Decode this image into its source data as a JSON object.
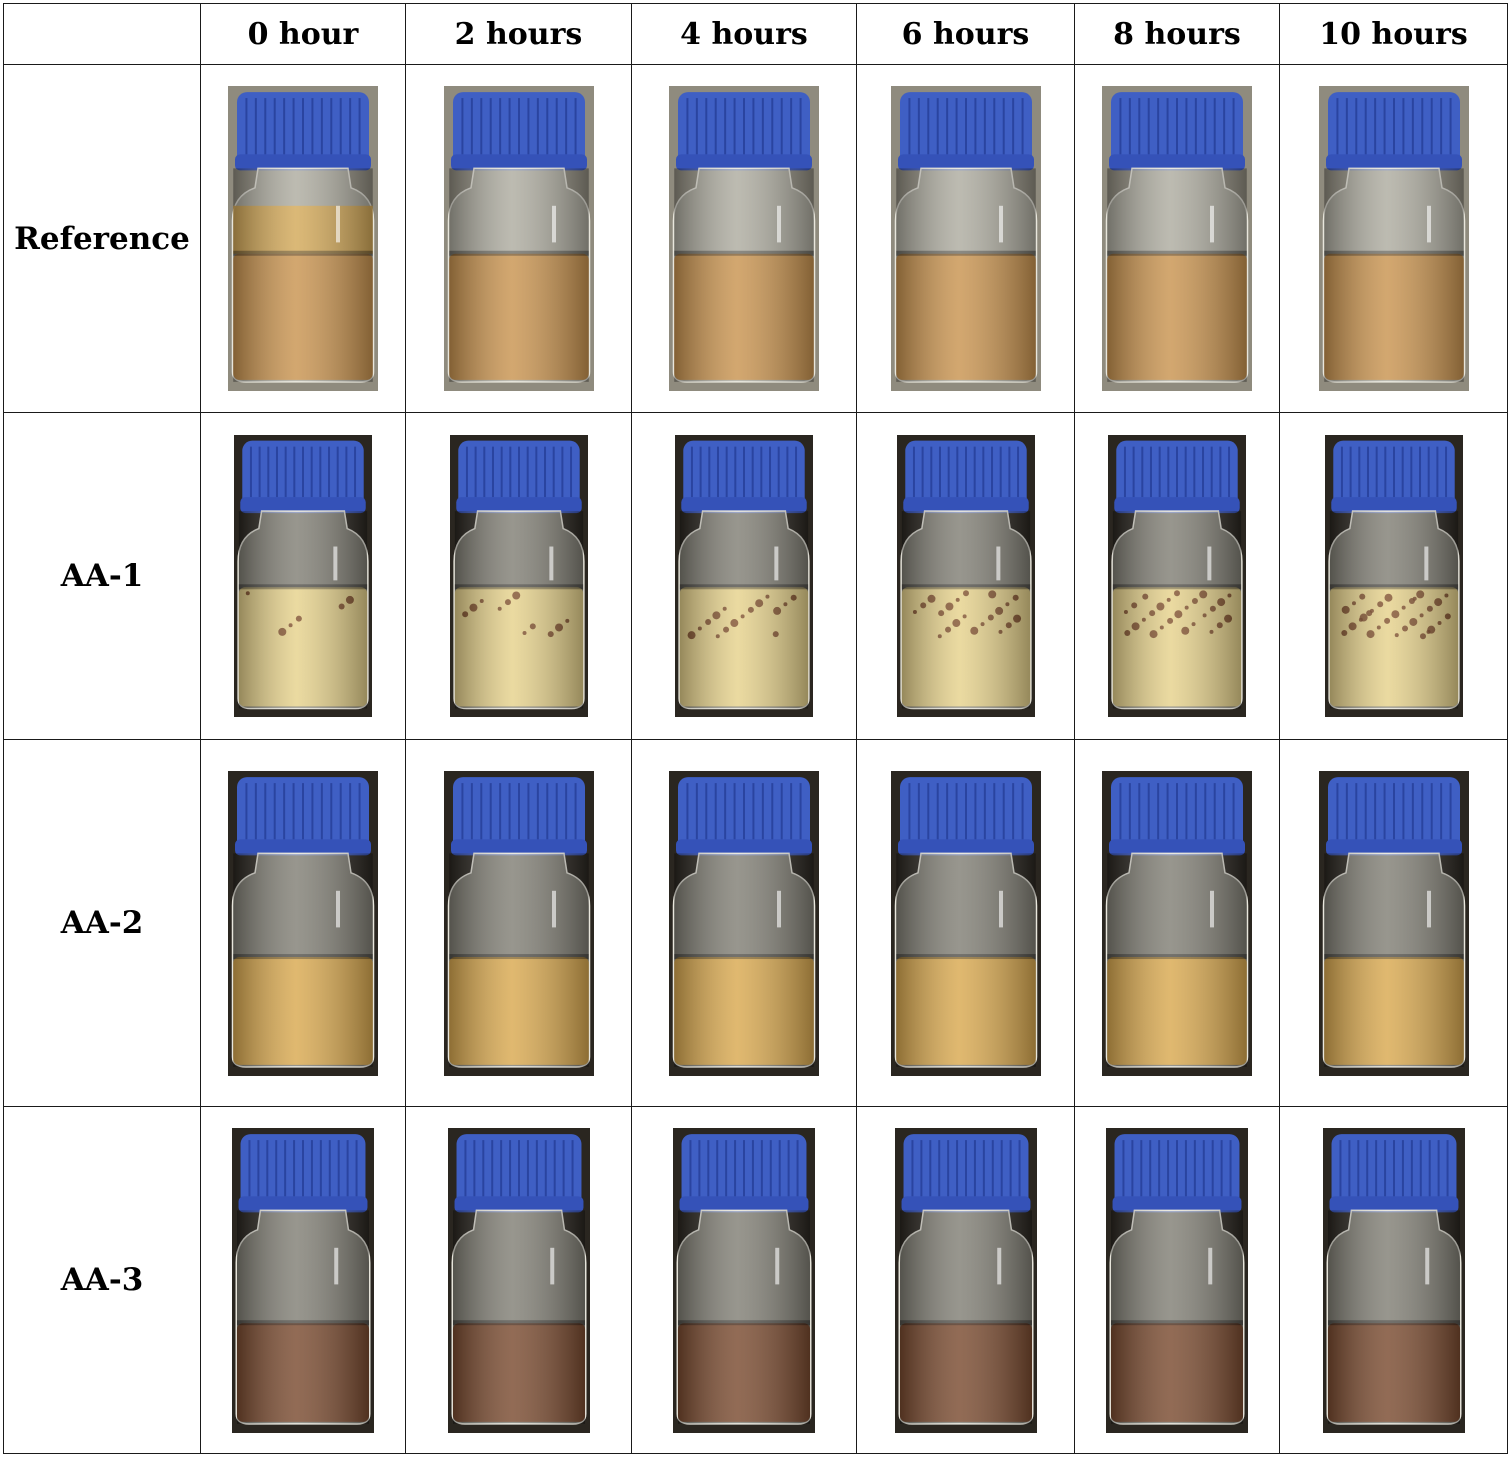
{
  "table": {
    "columns": [
      "0 hour",
      "2 hours",
      "4 hours",
      "6 hours",
      "8 hours",
      "10 hours"
    ],
    "rows": [
      {
        "label": "Reference"
      },
      {
        "label": "AA-1"
      },
      {
        "label": "AA-2"
      },
      {
        "label": "AA-3"
      }
    ]
  },
  "colors": {
    "cap_blue": "#3f5fc4",
    "reference_liquid": "#c99450",
    "aa1_liquid": "#e6d28c",
    "aa2_liquid": "#d9a950",
    "aa3_liquid": "#7a4b30",
    "photo_backdrop_light": "#8f8b7e",
    "photo_backdrop_dark": "#2a2620"
  },
  "icons": [
    "bottle-photo"
  ]
}
